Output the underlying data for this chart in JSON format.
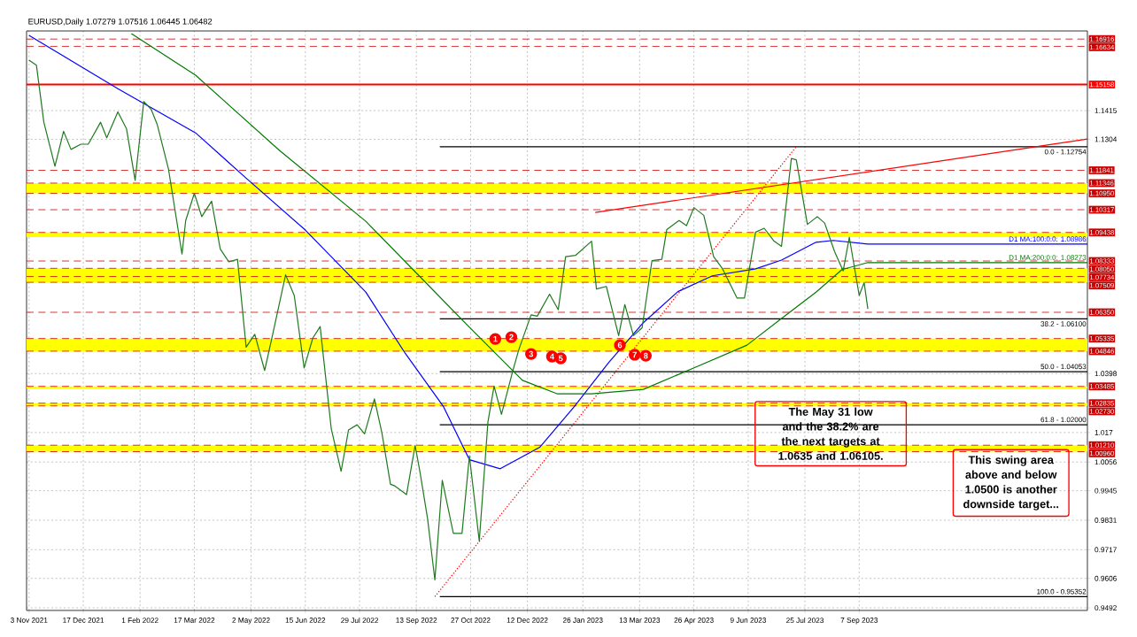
{
  "chart_data": {
    "type": "line",
    "title": "EURUSD,Daily 1.07279 1.07516 1.06445 1.06482",
    "xlim": [
      "2021-11-01",
      "2024-03-10"
    ],
    "xticks": [
      {
        "value": "2021-11-03",
        "label": "3 Nov 2021"
      },
      {
        "value": "2021-12-17",
        "label": "17 Dec 2021"
      },
      {
        "value": "2022-02-01",
        "label": "1 Feb 2022"
      },
      {
        "value": "2022-03-17",
        "label": "17 Mar 2022"
      },
      {
        "value": "2022-05-02",
        "label": "2 May 2022"
      },
      {
        "value": "2022-06-15",
        "label": "15 Jun 2022"
      },
      {
        "value": "2022-07-29",
        "label": "29 Jul 2022"
      },
      {
        "value": "2022-09-13",
        "label": "13 Sep 2022"
      },
      {
        "value": "2022-10-27",
        "label": "27 Oct 2022"
      },
      {
        "value": "2022-12-12",
        "label": "12 Dec 2022"
      },
      {
        "value": "2023-01-26",
        "label": "26 Jan 2023"
      },
      {
        "value": "2023-03-13",
        "label": "13 Mar 2023"
      },
      {
        "value": "2023-04-26",
        "label": "26 Apr 2023"
      },
      {
        "value": "2023-06-09",
        "label": "9 Jun 2023"
      },
      {
        "value": "2023-07-25",
        "label": "25 Jul 2023"
      },
      {
        "value": "2023-09-07",
        "label": "7 Sep 2023"
      }
    ],
    "ylim": [
      0.9482,
      1.1723
    ],
    "yticks": [
      1.1415,
      1.1304,
      1.0398,
      1.017,
      1.0056,
      0.9945,
      0.9831,
      0.9717,
      0.9606,
      0.9492
    ],
    "grid": true,
    "bands": [
      {
        "axis": "y",
        "from": 1.1095,
        "to": 1.11346,
        "color": "#ffff00"
      },
      {
        "axis": "y",
        "from": 1.09255,
        "to": 1.09438,
        "color": "#ffff00"
      },
      {
        "axis": "y",
        "from": 1.07509,
        "to": 1.0805,
        "color": "#ffff00"
      },
      {
        "axis": "y",
        "from": 1.04846,
        "to": 1.05335,
        "color": "#ffff00"
      },
      {
        "axis": "y",
        "from": 1.034,
        "to": 1.03485,
        "color": "#ffff00"
      },
      {
        "axis": "y",
        "from": 1.0273,
        "to": 1.02835,
        "color": "#ffff00"
      },
      {
        "axis": "y",
        "from": 1.0096,
        "to": 1.0121,
        "color": "#ffff00"
      }
    ],
    "ref_lines": [
      {
        "axis": "y",
        "value": 1.16916,
        "label": "1.16916",
        "color": "#cc0000",
        "line_style": "dashed"
      },
      {
        "axis": "y",
        "value": 1.16634,
        "label": "1.16634",
        "color": "#cc0000",
        "line_style": "dashed"
      },
      {
        "axis": "y",
        "value": 1.15158,
        "label": "1.15158",
        "color": "#ff0000",
        "line_style": "solid"
      },
      {
        "axis": "y",
        "value": 1.11841,
        "label": "1.11841",
        "color": "#cc0000",
        "line_style": "dashed"
      },
      {
        "axis": "y",
        "value": 1.11346,
        "label": "1.11346",
        "color": "#cc0000",
        "line_style": "dashed"
      },
      {
        "axis": "y",
        "value": 1.1095,
        "label": "1.10950",
        "color": "#cc0000",
        "line_style": "dashed"
      },
      {
        "axis": "y",
        "value": 1.10317,
        "label": "1.10317",
        "color": "#cc0000",
        "line_style": "dashed"
      },
      {
        "axis": "y",
        "value": 1.09438,
        "label": "1.09438",
        "color": "#cc0000",
        "line_style": "dashed"
      },
      {
        "axis": "y",
        "value": 1.08333,
        "label": "1.08333",
        "color": "#cc0000",
        "line_style": "dashed"
      },
      {
        "axis": "y",
        "value": 1.0805,
        "label": "1.08050",
        "color": "#cc0000",
        "line_style": "dashed"
      },
      {
        "axis": "y",
        "value": 1.07734,
        "label": "1.07734",
        "color": "#cc0000",
        "line_style": "dashed"
      },
      {
        "axis": "y",
        "value": 1.07509,
        "label": "1.07509",
        "color": "#cc0000",
        "line_style": "dashed"
      },
      {
        "axis": "y",
        "value": 1.0635,
        "label": "1.06350",
        "color": "#cc0000",
        "line_style": "dashed"
      },
      {
        "axis": "y",
        "value": 1.05335,
        "label": "1.05335",
        "color": "#cc0000",
        "line_style": "dashed"
      },
      {
        "axis": "y",
        "value": 1.04846,
        "label": "1.04846",
        "color": "#cc0000",
        "line_style": "dashed"
      },
      {
        "axis": "y",
        "value": 1.03485,
        "label": "1.03485",
        "color": "#cc0000",
        "line_style": "dashed"
      },
      {
        "axis": "y",
        "value": 1.02835,
        "label": "1.02835",
        "color": "#cc0000",
        "line_style": "dashed"
      },
      {
        "axis": "y",
        "value": 1.0273,
        "label": "1.02730",
        "color": "#cc0000",
        "line_style": "dashed"
      },
      {
        "axis": "y",
        "value": 1.0121,
        "label": "1.01210",
        "color": "#cc0000",
        "line_style": "dashed"
      },
      {
        "axis": "y",
        "value": 1.0096,
        "label": "1.00960",
        "color": "#cc0000",
        "line_style": "dashed"
      }
    ],
    "series": [
      {
        "name": "0.0 - 1.12754",
        "color": "#000000",
        "line_style": "solid",
        "x": [
          "2022-10-02",
          "2024-03-10"
        ],
        "values": [
          1.12754,
          1.12754
        ]
      },
      {
        "name": "38.2 - 1.06100",
        "color": "#000000",
        "line_style": "solid",
        "x": [
          "2022-10-02",
          "2024-03-10"
        ],
        "values": [
          1.061,
          1.061
        ]
      },
      {
        "name": "50.0 - 1.04053",
        "color": "#000000",
        "line_style": "solid",
        "x": [
          "2022-10-02",
          "2024-03-10"
        ],
        "values": [
          1.04053,
          1.04053
        ]
      },
      {
        "name": "61.8 - 1.02000",
        "color": "#000000",
        "line_style": "solid",
        "x": [
          "2022-10-02",
          "2024-03-10"
        ],
        "values": [
          1.02,
          1.02
        ]
      },
      {
        "name": "100.0 - 0.95352",
        "color": "#000000",
        "line_style": "solid",
        "x": [
          "2022-10-02",
          "2024-03-10"
        ],
        "values": [
          0.95352,
          0.95352
        ]
      },
      {
        "color": "#ff0000",
        "line_style": "dotted",
        "x": [
          "2022-09-28",
          "2023-07-18"
        ],
        "values": [
          0.95352,
          1.12754
        ]
      },
      {
        "name": "D1 MA:100:0:0: 1.08986",
        "color": "#0000ff",
        "line_style": "solid",
        "x": [
          "2021-11-03",
          "2022-01-14",
          "2022-03-18",
          "2022-04-27",
          "2022-06-15",
          "2022-08-03",
          "2022-09-04",
          "2022-10-05",
          "2022-10-26",
          "2022-11-20",
          "2022-12-22",
          "2023-01-19",
          "2023-02-16",
          "2023-03-16",
          "2023-04-13",
          "2023-05-11",
          "2023-06-15",
          "2023-07-06",
          "2023-08-03",
          "2023-08-17",
          "2023-09-14",
          "2024-03-10"
        ],
        "values": [
          1.1706,
          1.15,
          1.1329,
          1.1158,
          1.0953,
          1.0713,
          1.0476,
          1.027,
          1.0065,
          1.003,
          1.0113,
          1.027,
          1.0441,
          1.0595,
          1.0715,
          1.0776,
          1.0803,
          1.0837,
          1.0906,
          1.0913,
          1.08986,
          1.08986
        ]
      },
      {
        "name": "D1 MA:200:0:0: 1.08273",
        "color": "#007a00",
        "line_style": "solid",
        "x": [
          "2022-01-25",
          "2022-03-18",
          "2022-05-25",
          "2022-08-03",
          "2022-09-14",
          "2022-10-26",
          "2022-12-08",
          "2023-01-05",
          "2023-02-02",
          "2023-03-16",
          "2023-04-27",
          "2023-06-08",
          "2023-07-06",
          "2023-08-03",
          "2023-08-24",
          "2023-09-14",
          "2024-03-10"
        ],
        "values": [
          1.1713,
          1.1552,
          1.1261,
          1.0987,
          1.0782,
          1.0577,
          1.0372,
          1.032,
          1.032,
          1.0337,
          1.0422,
          1.0508,
          1.0611,
          1.0713,
          1.08,
          1.08273,
          1.08273
        ]
      },
      {
        "color": "#1f7a1f",
        "line_style": "solid",
        "x": [
          "2021-11-03",
          "2021-11-09",
          "2021-11-15",
          "2021-11-24",
          "2021-12-01",
          "2021-12-07",
          "2021-12-15",
          "2021-12-21",
          "2021-12-31",
          "2022-01-05",
          "2022-01-14",
          "2022-01-21",
          "2022-01-28",
          "2022-02-04",
          "2022-02-10",
          "2022-02-15",
          "2022-02-24",
          "2022-03-07",
          "2022-03-10",
          "2022-03-17",
          "2022-03-23",
          "2022-03-31",
          "2022-04-07",
          "2022-04-14",
          "2022-04-21",
          "2022-04-28",
          "2022-05-05",
          "2022-05-13",
          "2022-05-20",
          "2022-05-30",
          "2022-06-06",
          "2022-06-14",
          "2022-06-21",
          "2022-06-27",
          "2022-07-06",
          "2022-07-14",
          "2022-07-20",
          "2022-07-27",
          "2022-08-02",
          "2022-08-10",
          "2022-08-16",
          "2022-08-23",
          "2022-08-26",
          "2022-09-05",
          "2022-09-12",
          "2022-09-16",
          "2022-09-22",
          "2022-09-28",
          "2022-10-04",
          "2022-10-13",
          "2022-10-20",
          "2022-10-26",
          "2022-11-03",
          "2022-11-10",
          "2022-11-15",
          "2022-11-21",
          "2022-11-30",
          "2022-12-05",
          "2022-12-15",
          "2022-12-20",
          "2022-12-30",
          "2023-01-06",
          "2023-01-12",
          "2023-01-20",
          "2023-02-02",
          "2023-02-06",
          "2023-02-14",
          "2023-02-24",
          "2023-03-01",
          "2023-03-08",
          "2023-03-15",
          "2023-03-23",
          "2023-03-31",
          "2023-04-04",
          "2023-04-14",
          "2023-04-20",
          "2023-04-26",
          "2023-05-04",
          "2023-05-12",
          "2023-05-19",
          "2023-05-31",
          "2023-06-06",
          "2023-06-15",
          "2023-06-22",
          "2023-06-30",
          "2023-07-06",
          "2023-07-14",
          "2023-07-18",
          "2023-07-27",
          "2023-08-04",
          "2023-08-10",
          "2023-08-18",
          "2023-08-25",
          "2023-08-30",
          "2023-09-07",
          "2023-09-11",
          "2023-09-14"
        ],
        "values": [
          1.161,
          1.159,
          1.137,
          1.12,
          1.1335,
          1.1265,
          1.1285,
          1.1285,
          1.137,
          1.131,
          1.141,
          1.1345,
          1.1145,
          1.145,
          1.142,
          1.136,
          1.119,
          1.086,
          1.099,
          1.1095,
          1.1005,
          1.1065,
          1.088,
          1.083,
          1.084,
          1.05,
          1.055,
          1.041,
          1.056,
          1.078,
          1.07,
          1.042,
          1.0535,
          1.058,
          1.0185,
          1.002,
          1.018,
          1.02,
          1.0165,
          1.03,
          1.017,
          0.997,
          0.9965,
          0.993,
          1.012,
          1.0015,
          0.984,
          0.96,
          0.9985,
          0.978,
          0.978,
          1.008,
          0.975,
          1.021,
          1.035,
          1.024,
          1.0405,
          1.049,
          1.0625,
          1.062,
          1.0705,
          1.0645,
          1.085,
          1.0855,
          1.091,
          1.0725,
          1.0735,
          1.0545,
          1.0665,
          1.0545,
          1.0575,
          1.0835,
          1.084,
          1.0955,
          1.099,
          1.097,
          1.104,
          1.101,
          1.085,
          1.0805,
          1.069,
          1.069,
          1.0945,
          1.096,
          1.091,
          1.089,
          1.123,
          1.1225,
          1.0975,
          1.1005,
          1.098,
          1.087,
          1.0795,
          1.0925,
          1.07,
          1.075,
          1.0648
        ]
      },
      {
        "color": "#ff0000",
        "line_style": "solid",
        "x": [
          "2023-02-05",
          "2024-03-10"
        ],
        "values": [
          1.1021,
          1.1305
        ]
      }
    ],
    "annotations": [
      {
        "text": "1",
        "x": "2022-11-16",
        "y": 1.0532
      },
      {
        "text": "2",
        "x": "2022-11-29",
        "y": 1.0539
      },
      {
        "text": "3",
        "x": "2022-12-15",
        "y": 1.0474
      },
      {
        "text": "4",
        "x": "2023-01-01",
        "y": 1.0464
      },
      {
        "text": "5",
        "x": "2023-01-08",
        "y": 1.0457
      },
      {
        "text": "6",
        "x": "2023-02-25",
        "y": 1.0508
      },
      {
        "text": "7",
        "x": "2023-03-09",
        "y": 1.0471
      },
      {
        "text": "8",
        "x": "2023-03-18",
        "y": 1.0467
      },
      "The May 31 low and the 38.2% are the next targets at 1.0635 and 1.06105.",
      "This swing area above and below 1.0500 is another downside target..."
    ]
  }
}
